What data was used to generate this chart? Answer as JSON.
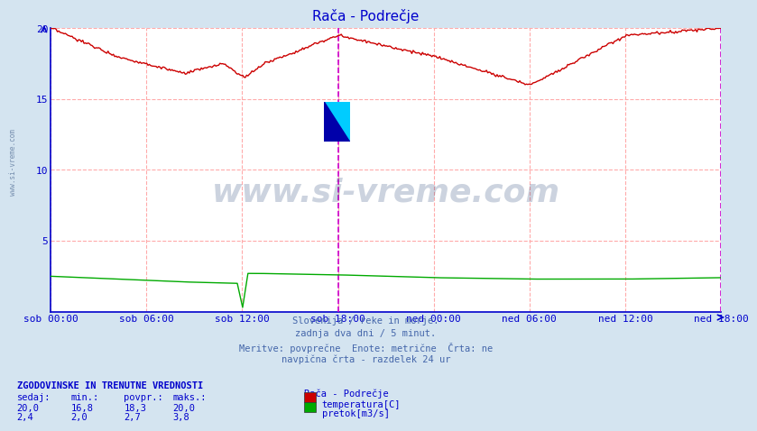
{
  "title": "Rača - Podrečje",
  "title_color": "#0000cc",
  "bg_color": "#d4e4f0",
  "plot_bg_color": "#ffffff",
  "x_tick_labels": [
    "sob 00:00",
    "sob 06:00",
    "sob 12:00",
    "sob 18:00",
    "ned 00:00",
    "ned 06:00",
    "ned 12:00",
    "ned 18:00"
  ],
  "n_ticks": 8,
  "ylim": [
    0,
    20
  ],
  "yticks": [
    5,
    10,
    15,
    20
  ],
  "temp_color": "#cc0000",
  "flow_color": "#00aa00",
  "axis_color": "#0000cc",
  "vline_color": "#cc00cc",
  "vline_magenta_idx": 216,
  "vline_magenta2_idx": 503,
  "grid_h_color": "#ffaaaa",
  "grid_v_color": "#ffaaaa",
  "watermark_text": "www.si-vreme.com",
  "watermark_color": "#1a3a6e",
  "watermark_alpha": 0.22,
  "subtitle_lines": [
    "Slovenija / reke in morje.",
    "zadnja dva dni / 5 minut.",
    "Meritve: povprečne  Enote: metrične  Črta: ne",
    "navpična črta - razdelek 24 ur"
  ],
  "subtitle_color": "#4466aa",
  "stats_header": "ZGODOVINSKE IN TRENUTNE VREDNOSTI",
  "col_headers": [
    "sedaj:",
    "min.:",
    "povpr.:",
    "maks.:"
  ],
  "stats_temp": [
    20.0,
    16.8,
    18.3,
    20.0
  ],
  "stats_flow": [
    2.4,
    2.0,
    2.7,
    3.8
  ],
  "legend_title": "Rača - Podrečje",
  "legend_temp_label": "temperatura[C]",
  "legend_flow_label": "pretok[m3/s]",
  "n_points": 504,
  "left_watermark": "www.si-vreme.com"
}
